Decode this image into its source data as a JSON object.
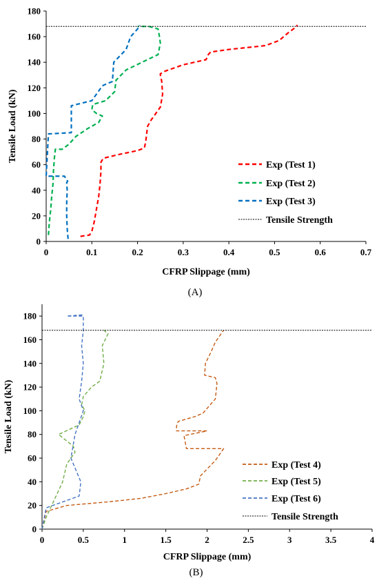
{
  "chart_data": [
    {
      "type": "line",
      "panel_label": "(A)",
      "xlabel": "CFRP Slippage (mm)",
      "ylabel": "Tensile Load (kN)",
      "xlim": [
        0,
        0.7
      ],
      "ylim": [
        0,
        180
      ],
      "xticks": [
        "0",
        "0.1",
        "0.2",
        "0.3",
        "0.4",
        "0.5",
        "0.6",
        "0.7"
      ],
      "yticks": [
        "0",
        "20",
        "40",
        "60",
        "80",
        "100",
        "120",
        "140",
        "160",
        "180"
      ],
      "grid": false,
      "legend_position": "bottom-right",
      "reference_line": {
        "name": "Tensile Strength",
        "y": 168
      },
      "series": [
        {
          "name": "Exp (Test 1)",
          "color": "#ff0000",
          "x": [
            0.075,
            0.095,
            0.1,
            0.105,
            0.11,
            0.115,
            0.118,
            0.12,
            0.12,
            0.125,
            0.16,
            0.2,
            0.215,
            0.218,
            0.22,
            0.222,
            0.23,
            0.25,
            0.255,
            0.253,
            0.25,
            0.25,
            0.26,
            0.3,
            0.35,
            0.355,
            0.36,
            0.4,
            0.48,
            0.51,
            0.53,
            0.545,
            0.55
          ],
          "y": [
            4,
            5,
            8,
            15,
            25,
            35,
            45,
            55,
            62,
            65,
            68,
            71,
            73,
            78,
            84,
            90,
            95,
            105,
            115,
            125,
            130,
            131,
            133,
            138,
            142,
            146,
            148,
            150,
            153,
            157,
            163,
            167,
            169
          ]
        },
        {
          "name": "Exp (Test 2)",
          "color": "#00b050",
          "x": [
            0.005,
            0.007,
            0.01,
            0.012,
            0.015,
            0.016,
            0.018,
            0.02,
            0.035,
            0.05,
            0.065,
            0.09,
            0.115,
            0.123,
            0.11,
            0.1,
            0.102,
            0.13,
            0.15,
            0.153,
            0.175,
            0.21,
            0.245,
            0.25,
            0.248,
            0.245,
            0.225,
            0.2
          ],
          "y": [
            5,
            15,
            25,
            35,
            45,
            55,
            65,
            72,
            72,
            76,
            82,
            88,
            93,
            98,
            100,
            103,
            107,
            110,
            117,
            126,
            134,
            140,
            146,
            155,
            160,
            166,
            168,
            168
          ]
        },
        {
          "name": "Exp (Test 3)",
          "color": "#0070c0",
          "x": [
            0.048,
            0.046,
            0.045,
            0.045,
            0.046,
            0.045,
            0.047,
            0.04,
            0.0,
            0.005,
            0.055,
            0.055,
            0.055,
            0.1,
            0.12,
            0.125,
            0.145,
            0.148,
            0.175,
            0.185,
            0.2,
            0.205
          ],
          "y": [
            2,
            10,
            20,
            30,
            40,
            46,
            47,
            51,
            51,
            84,
            85,
            95,
            106,
            110,
            120,
            122,
            125,
            140,
            150,
            160,
            166,
            169
          ]
        },
        {
          "name": "Tensile Strength",
          "color": "#000000",
          "style": "dotted",
          "x": [
            0,
            0.7
          ],
          "y": [
            168,
            168
          ]
        }
      ]
    },
    {
      "type": "line",
      "panel_label": "(B)",
      "xlabel": "CFRP Slippage (mm)",
      "ylabel": "Tensile Load (kN)",
      "xlim": [
        0,
        4
      ],
      "ylim": [
        0,
        190
      ],
      "xticks": [
        "0",
        "0.5",
        "1",
        "1.5",
        "2",
        "2.5",
        "3",
        "3.5",
        "4"
      ],
      "yticks": [
        "0",
        "20",
        "40",
        "60",
        "80",
        "100",
        "120",
        "140",
        "160",
        "180"
      ],
      "grid": false,
      "legend_position": "bottom-right",
      "reference_line": {
        "name": "Tensile Strength",
        "y": 168
      },
      "series": [
        {
          "name": "Exp (Test 4)",
          "color": "#c55a11",
          "x": [
            0.0,
            0.05,
            0.3,
            0.8,
            1.2,
            1.5,
            1.75,
            1.9,
            1.92,
            2.1,
            2.2,
            1.75,
            1.72,
            2.0,
            1.63,
            1.63,
            1.65,
            1.85,
            1.95,
            2.1,
            2.12,
            2.1,
            1.97,
            1.98,
            2.05,
            2.1,
            2.2
          ],
          "y": [
            0,
            15,
            20,
            23,
            26,
            30,
            34,
            38,
            45,
            58,
            68,
            68,
            79,
            83,
            83,
            87,
            91,
            95,
            98,
            110,
            123,
            128,
            130,
            140,
            150,
            158,
            168
          ]
        },
        {
          "name": "Exp (Test 5)",
          "color": "#70ad47",
          "x": [
            0.0,
            0.05,
            0.15,
            0.25,
            0.3,
            0.4,
            0.38,
            0.2,
            0.45,
            0.5,
            0.52,
            0.48,
            0.5,
            0.6,
            0.7,
            0.75,
            0.73,
            0.8,
            0.75
          ],
          "y": [
            0,
            10,
            25,
            40,
            55,
            65,
            70,
            80,
            88,
            95,
            100,
            105,
            112,
            120,
            125,
            140,
            155,
            165,
            168
          ]
        },
        {
          "name": "Exp (Test 6)",
          "color": "#4472c4",
          "x": [
            0.0,
            0.05,
            0.45,
            0.47,
            0.35,
            0.4,
            0.45,
            0.5,
            0.45,
            0.48,
            0.5,
            0.48,
            0.5,
            0.5,
            0.3,
            0.5
          ],
          "y": [
            0,
            18,
            28,
            40,
            60,
            80,
            90,
            100,
            110,
            125,
            140,
            155,
            168,
            180,
            180,
            181
          ]
        },
        {
          "name": "Tensile Strength",
          "color": "#000000",
          "style": "dotted",
          "x": [
            0,
            4
          ],
          "y": [
            168,
            168
          ]
        }
      ]
    }
  ]
}
